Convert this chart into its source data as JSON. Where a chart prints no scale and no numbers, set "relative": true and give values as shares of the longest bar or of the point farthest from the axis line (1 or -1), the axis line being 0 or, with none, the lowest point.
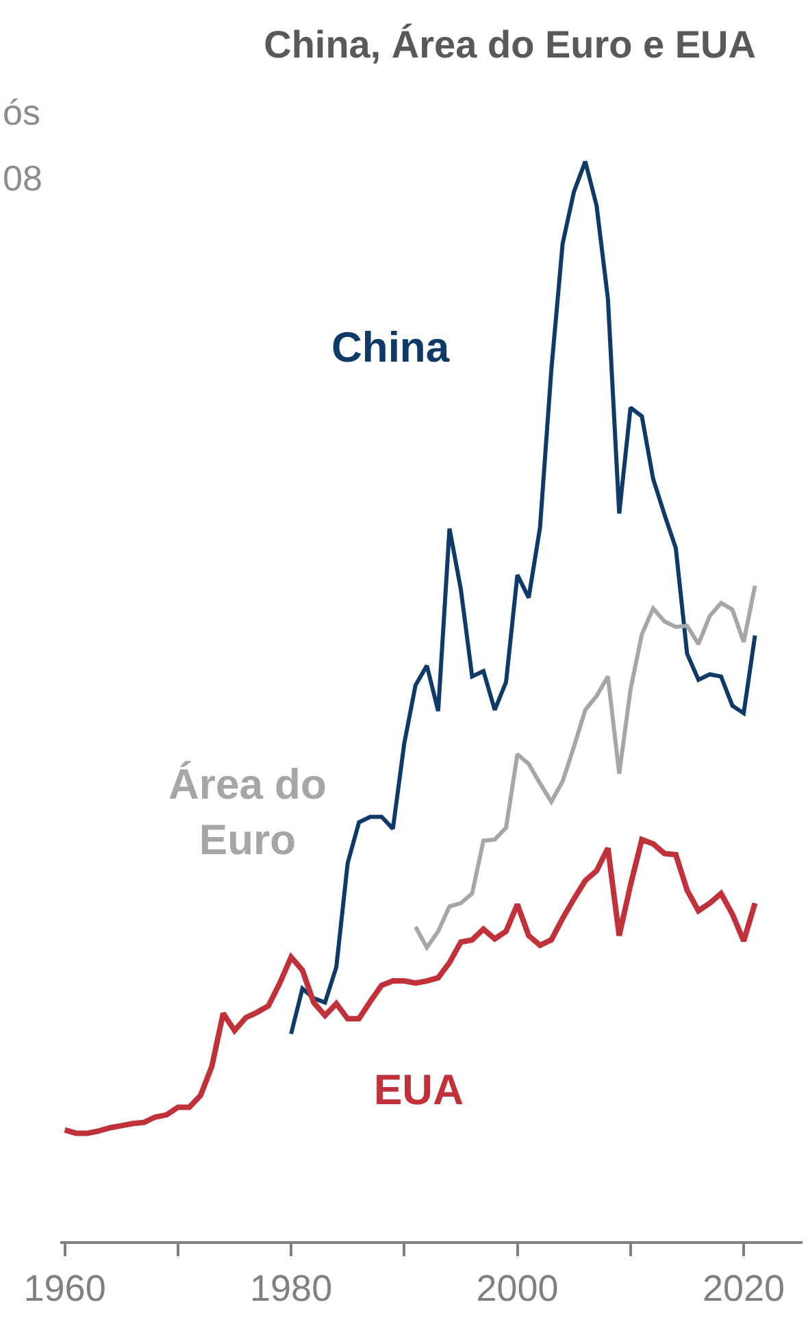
{
  "chart_data": {
    "type": "line",
    "title": "China, Área do Euro e EUA",
    "relative": true,
    "legend": false,
    "grid": false,
    "annotations": [
      "ós",
      "08"
    ],
    "x": [
      1960,
      1961,
      1962,
      1963,
      1964,
      1965,
      1966,
      1967,
      1968,
      1969,
      1970,
      1971,
      1972,
      1973,
      1974,
      1975,
      1976,
      1977,
      1978,
      1979,
      1980,
      1981,
      1982,
      1983,
      1984,
      1985,
      1986,
      1987,
      1988,
      1989,
      1990,
      1991,
      1992,
      1993,
      1994,
      1995,
      1996,
      1997,
      1998,
      1999,
      2000,
      2001,
      2002,
      2003,
      2004,
      2005,
      2006,
      2007,
      2008,
      2009,
      2010,
      2011,
      2012,
      2013,
      2014,
      2015,
      2016,
      2017,
      2018,
      2019,
      2020,
      2021
    ],
    "xlim": [
      1959.6,
      2025.2
    ],
    "xticks": [
      1960,
      {
        "value": 1970,
        "label": null
      },
      1980,
      {
        "value": 1990,
        "label": null
      },
      2000,
      {
        "value": 2010,
        "label": null
      },
      2020
    ],
    "series": [
      {
        "name": "China",
        "color": "#0d3a66",
        "values": [
          null,
          null,
          null,
          null,
          null,
          null,
          null,
          null,
          null,
          null,
          null,
          null,
          null,
          null,
          null,
          null,
          null,
          null,
          null,
          null,
          0.192,
          0.234,
          0.225,
          0.221,
          0.254,
          0.35,
          0.388,
          0.393,
          0.393,
          0.382,
          0.461,
          0.515,
          0.533,
          0.491,
          0.66,
          0.604,
          0.523,
          0.528,
          0.492,
          0.518,
          0.617,
          0.596,
          0.661,
          0.807,
          0.924,
          0.972,
          1,
          0.959,
          0.873,
          0.674,
          0.772,
          0.764,
          0.706,
          0.673,
          0.642,
          0.544,
          0.52,
          0.525,
          0.523,
          0.496,
          0.489,
          0.561
        ]
      },
      {
        "name": "Área do Euro",
        "color": "#a6a6a6",
        "values": [
          null,
          null,
          null,
          null,
          null,
          null,
          null,
          null,
          null,
          null,
          null,
          null,
          null,
          null,
          null,
          null,
          null,
          null,
          null,
          null,
          null,
          null,
          null,
          null,
          null,
          null,
          null,
          null,
          null,
          null,
          null,
          0.291,
          0.272,
          0.287,
          0.31,
          0.313,
          0.322,
          0.371,
          0.372,
          0.383,
          0.451,
          0.442,
          0.424,
          0.407,
          0.426,
          0.458,
          0.492,
          0.505,
          0.523,
          0.433,
          0.511,
          0.562,
          0.586,
          0.574,
          0.569,
          0.57,
          0.553,
          0.579,
          0.591,
          0.585,
          0.555,
          0.607
        ]
      },
      {
        "name": "EUA",
        "color": "#c0313a",
        "values": [
          0.103,
          0.1,
          0.1,
          0.102,
          0.105,
          0.107,
          0.109,
          0.11,
          0.115,
          0.117,
          0.124,
          0.124,
          0.135,
          0.162,
          0.211,
          0.195,
          0.207,
          0.212,
          0.218,
          0.239,
          0.263,
          0.251,
          0.221,
          0.209,
          0.22,
          0.206,
          0.206,
          0.222,
          0.237,
          0.241,
          0.241,
          0.239,
          0.241,
          0.244,
          0.258,
          0.277,
          0.279,
          0.289,
          0.28,
          0.287,
          0.312,
          0.283,
          0.274,
          0.279,
          0.299,
          0.317,
          0.334,
          0.343,
          0.364,
          0.283,
          0.33,
          0.372,
          0.368,
          0.359,
          0.358,
          0.325,
          0.306,
          0.313,
          0.322,
          0.303,
          0.278,
          0.313
        ]
      }
    ]
  }
}
